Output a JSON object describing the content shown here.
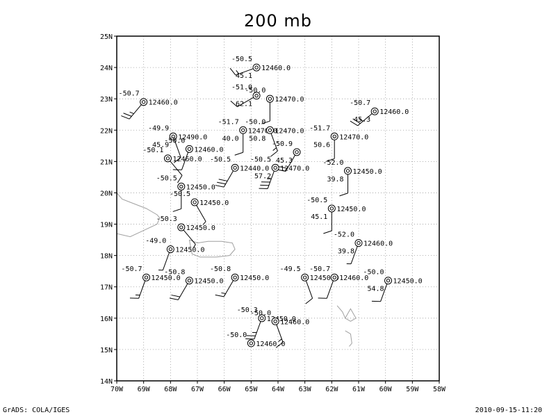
{
  "title": "200 mb",
  "footer": {
    "credit": "GrADS: COLA/IGES",
    "timestamp": "2010-09-15-11:20"
  },
  "map": {
    "lon_range": [
      -70,
      -58
    ],
    "lat_range": [
      14,
      25
    ],
    "grid": "dotted",
    "lon_labels": [
      "70W",
      "69W",
      "68W",
      "67W",
      "66W",
      "65W",
      "64W",
      "63W",
      "62W",
      "61W",
      "60W",
      "59W",
      "58W"
    ],
    "lat_labels": [
      "14N",
      "15N",
      "16N",
      "17N",
      "18N",
      "19N",
      "20N",
      "21N",
      "22N",
      "23N",
      "24N",
      "25N"
    ],
    "coast_color": "#a0a0a0",
    "observations": [
      {
        "lon": -64.8,
        "lat": 24.0,
        "temp": "-50.5",
        "hgt": "12460.0",
        "dew": "45.1",
        "ddd": 250,
        "fff": 15
      },
      {
        "lon": -64.8,
        "lat": 23.1,
        "temp": "-51.0",
        "hgt": "",
        "dew": "62.1",
        "ddd": 240,
        "fff": 10
      },
      {
        "lon": -64.3,
        "lat": 23.0,
        "temp": "-50.0",
        "hgt": "12470.0",
        "dew": "",
        "ddd": 180,
        "fff": 10
      },
      {
        "lon": -69.0,
        "lat": 22.9,
        "temp": "-50.7",
        "hgt": "12460.0",
        "dew": "",
        "ddd": 220,
        "fff": 25
      },
      {
        "lon": -60.4,
        "lat": 22.6,
        "temp": "-50.7",
        "hgt": "12460.0",
        "dew": "45.3",
        "ddd": 230,
        "fff": 25
      },
      {
        "lon": -65.3,
        "lat": 22.0,
        "temp": "-51.7",
        "hgt": "12470.0",
        "dew": "40.0",
        "ddd": 180,
        "fff": 10
      },
      {
        "lon": -64.3,
        "lat": 22.0,
        "temp": "-50.0",
        "hgt": "12470.0",
        "dew": "50.8",
        "ddd": 160,
        "fff": 15
      },
      {
        "lon": -61.9,
        "lat": 21.8,
        "temp": "-51.7",
        "hgt": "12470.0",
        "dew": "50.6",
        "ddd": 180,
        "fff": 10
      },
      {
        "lon": -67.9,
        "lat": 21.8,
        "temp": "-49.9",
        "hgt": "12490.0",
        "dew": "45.9",
        "ddd": 160,
        "fff": 10
      },
      {
        "lon": -67.3,
        "lat": 21.4,
        "temp": "-50.0",
        "hgt": "12460.0",
        "dew": "",
        "ddd": 200,
        "fff": 10
      },
      {
        "lon": -63.3,
        "lat": 21.3,
        "temp": "-50.9",
        "hgt": "",
        "dew": "45.3",
        "ddd": 210,
        "fff": 20
      },
      {
        "lon": -68.1,
        "lat": 21.1,
        "temp": "-50.1",
        "hgt": "12460.0",
        "dew": "",
        "ddd": 140,
        "fff": 10
      },
      {
        "lon": -65.6,
        "lat": 20.8,
        "temp": "-50.5",
        "hgt": "12440.0",
        "dew": "",
        "ddd": 210,
        "fff": 30
      },
      {
        "lon": -64.1,
        "lat": 20.8,
        "temp": "-50.5",
        "hgt": "12470.0",
        "dew": "57.2",
        "ddd": 200,
        "fff": 35
      },
      {
        "lon": -61.4,
        "lat": 20.7,
        "temp": "-52.0",
        "hgt": "12450.0",
        "dew": "39.8",
        "ddd": 180,
        "fff": 10
      },
      {
        "lon": -67.6,
        "lat": 20.2,
        "temp": "-50.5",
        "hgt": "12450.0",
        "dew": "",
        "ddd": 180,
        "fff": 10
      },
      {
        "lon": -67.1,
        "lat": 19.7,
        "temp": "-50.5",
        "hgt": "12450.0",
        "dew": "",
        "ddd": 150,
        "fff": 5
      },
      {
        "lon": -62.0,
        "lat": 19.5,
        "temp": "-50.5",
        "hgt": "12450.0",
        "dew": "45.1",
        "ddd": 180,
        "fff": 10
      },
      {
        "lon": -67.6,
        "lat": 18.9,
        "temp": "-50.3",
        "hgt": "12450.0",
        "dew": "",
        "ddd": 140,
        "fff": 5
      },
      {
        "lon": -61.0,
        "lat": 18.4,
        "temp": "-52.0",
        "hgt": "12460.0",
        "dew": "39.8",
        "ddd": 200,
        "fff": 5
      },
      {
        "lon": -68.0,
        "lat": 18.2,
        "temp": "-49.0",
        "hgt": "12450.0",
        "dew": "",
        "ddd": 200,
        "fff": 5
      },
      {
        "lon": -68.9,
        "lat": 17.3,
        "temp": "-50.7",
        "hgt": "12450.0",
        "dew": "",
        "ddd": 200,
        "fff": 15
      },
      {
        "lon": -67.3,
        "lat": 17.2,
        "temp": "-50.8",
        "hgt": "12450.0",
        "dew": "",
        "ddd": 210,
        "fff": 20
      },
      {
        "lon": -65.6,
        "lat": 17.3,
        "temp": "-50.8",
        "hgt": "12450.0",
        "dew": "",
        "ddd": 210,
        "fff": 15
      },
      {
        "lon": -63.0,
        "lat": 17.3,
        "temp": "-49.5",
        "hgt": "12450.0",
        "dew": "",
        "ddd": 160,
        "fff": 10
      },
      {
        "lon": -61.9,
        "lat": 17.3,
        "temp": "-50.7",
        "hgt": "12460.0",
        "dew": "",
        "ddd": 200,
        "fff": 10
      },
      {
        "lon": -59.9,
        "lat": 17.2,
        "temp": "-50.0",
        "hgt": "12450.0",
        "dew": "54.8",
        "ddd": 200,
        "fff": 10
      },
      {
        "lon": -64.6,
        "lat": 16.0,
        "temp": "-50.3",
        "hgt": "12450.0",
        "dew": "",
        "ddd": 200,
        "fff": 25
      },
      {
        "lon": -64.1,
        "lat": 15.9,
        "temp": "-50.0",
        "hgt": "12460.0",
        "dew": "",
        "ddd": 160,
        "fff": 15
      },
      {
        "lon": -65.0,
        "lat": 15.2,
        "temp": "-50.0",
        "hgt": "12460.0",
        "dew": "",
        "ddd": 0,
        "fff": 0
      }
    ]
  }
}
